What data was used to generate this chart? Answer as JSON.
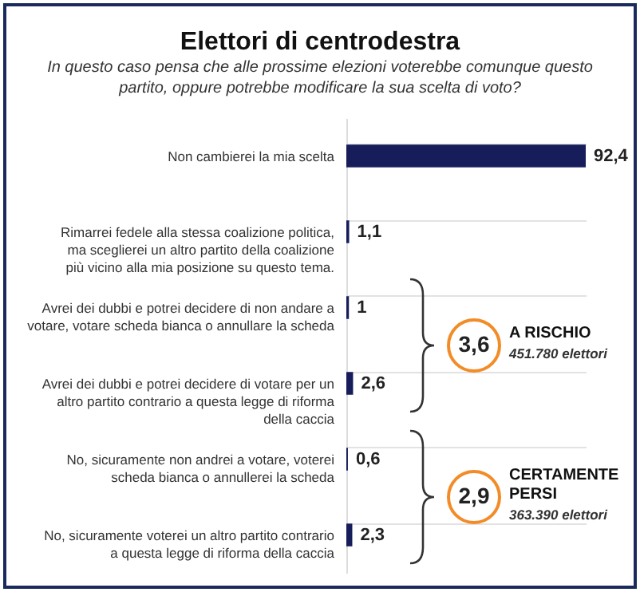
{
  "chart_data": {
    "type": "bar",
    "orientation": "horizontal",
    "title": "Elettori di centrodestra",
    "subtitle": "In questo caso pensa che alle prossime elezioni voterebbe comunque questo partito, oppure potrebbe modificare la sua scelta di voto?",
    "categories": [
      "Non cambierei la mia scelta",
      "Rimarrei fedele alla stessa coalizione politica, ma sceglierei un altro partito della coalizione più vicino alla mia posizione su questo tema.",
      "Avrei dei dubbi e potrei decidere di non andare a votare, votare scheda bianca o annullare la scheda",
      "Avrei dei dubbi e potrei decidere di votare per un altro partito contrario a questa legge di riforma della caccia",
      "No, sicuramente non andrei a votare, voterei scheda bianca o annullerei la scheda",
      "No, sicuramente voterei un altro partito contrario a questa legge di riforma della caccia"
    ],
    "values": [
      92.4,
      1.1,
      1,
      2.6,
      0.6,
      2.3
    ],
    "value_labels": [
      "92,4",
      "1,1",
      "1",
      "2,6",
      "0,6",
      "2,3"
    ],
    "color": "#161d5a",
    "grid": "y",
    "annotations": [
      "3,6",
      "A RISCHIO",
      "451.780 elettori",
      "2,9",
      "CERTAMENTE PERSI",
      "363.390 elettori"
    ]
  }
}
